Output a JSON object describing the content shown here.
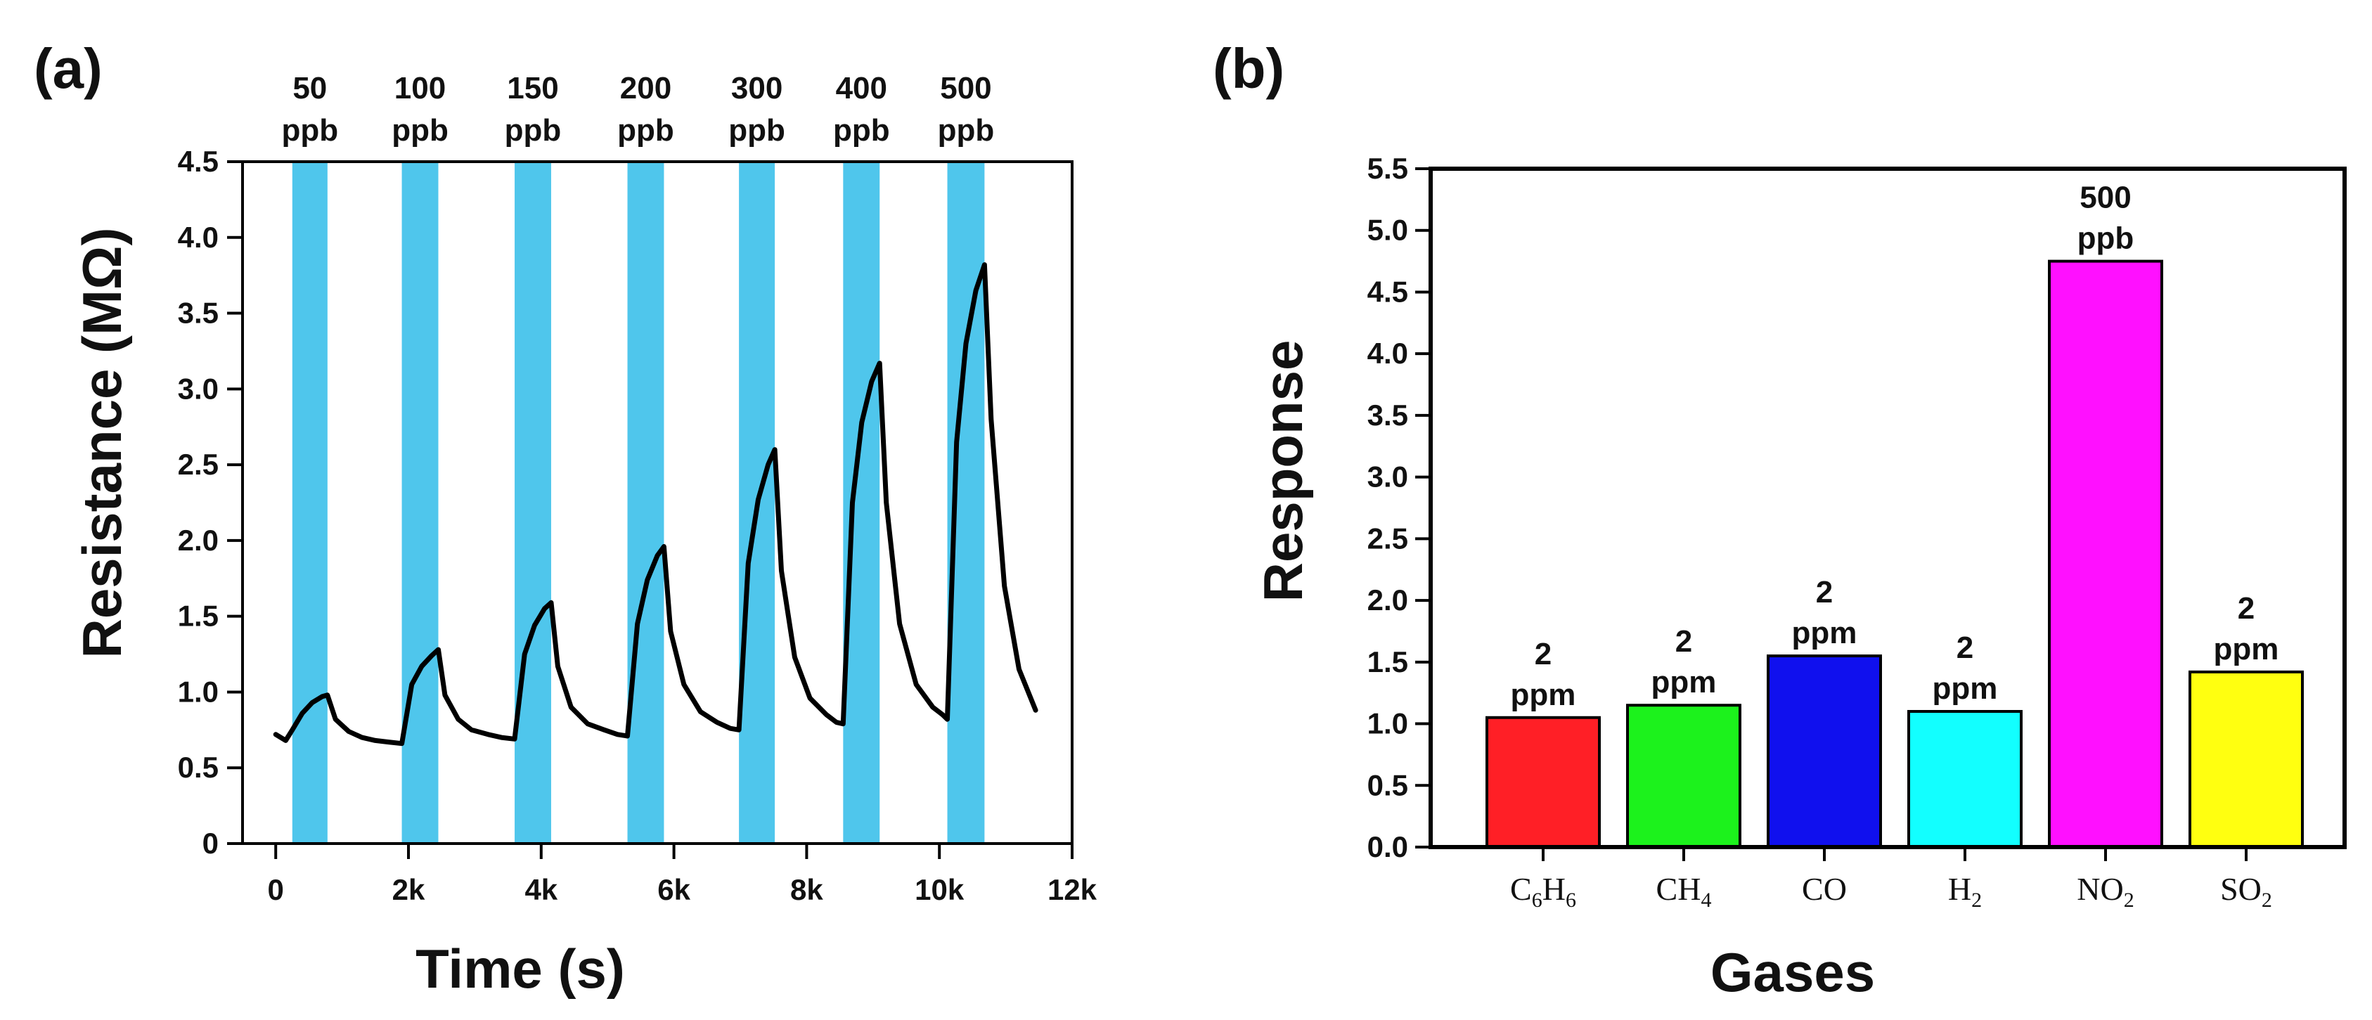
{
  "chart_data": [
    {
      "type": "line",
      "panel_label": "(a)",
      "xlabel": "Time (s)",
      "ylabel": "Resistance (MΩ)",
      "xlim": [
        -500,
        12000
      ],
      "ylim": [
        0,
        4.5
      ],
      "xticks": [
        {
          "value": 0,
          "label": "0"
        },
        {
          "value": 2000,
          "label": "2k"
        },
        {
          "value": 4000,
          "label": "4k"
        },
        {
          "value": 6000,
          "label": "6k"
        },
        {
          "value": 8000,
          "label": "8k"
        },
        {
          "value": 10000,
          "label": "10k"
        },
        {
          "value": 12000,
          "label": "12k"
        }
      ],
      "yticks": [
        {
          "value": 0,
          "label": "0"
        },
        {
          "value": 0.5,
          "label": "0.5"
        },
        {
          "value": 1.0,
          "label": "1.0"
        },
        {
          "value": 1.5,
          "label": "1.5"
        },
        {
          "value": 2.0,
          "label": "2.0"
        },
        {
          "value": 2.5,
          "label": "2.5"
        },
        {
          "value": 3.0,
          "label": "3.0"
        },
        {
          "value": 3.5,
          "label": "3.5"
        },
        {
          "value": 4.0,
          "label": "4.0"
        },
        {
          "value": 4.5,
          "label": "4.5"
        }
      ],
      "exposures": [
        {
          "conc": "50",
          "unit": "ppb",
          "start": 250,
          "end": 780
        },
        {
          "conc": "100",
          "unit": "ppb",
          "start": 1900,
          "end": 2450
        },
        {
          "conc": "150",
          "unit": "ppb",
          "start": 3600,
          "end": 4150
        },
        {
          "conc": "200",
          "unit": "ppb",
          "start": 5300,
          "end": 5850
        },
        {
          "conc": "300",
          "unit": "ppb",
          "start": 6980,
          "end": 7520
        },
        {
          "conc": "400",
          "unit": "ppb",
          "start": 8550,
          "end": 9100
        },
        {
          "conc": "500",
          "unit": "ppb",
          "start": 10120,
          "end": 10680
        }
      ],
      "series": [
        {
          "name": "Resistance",
          "x": [
            0,
            150,
            250,
            400,
            550,
            700,
            780,
            900,
            1100,
            1300,
            1500,
            1700,
            1900,
            2050,
            2200,
            2350,
            2450,
            2550,
            2750,
            2950,
            3200,
            3400,
            3600,
            3750,
            3900,
            4050,
            4150,
            4250,
            4450,
            4700,
            4950,
            5150,
            5300,
            5450,
            5600,
            5750,
            5850,
            5950,
            6150,
            6400,
            6650,
            6850,
            6980,
            7120,
            7270,
            7420,
            7520,
            7620,
            7820,
            8050,
            8300,
            8450,
            8550,
            8690,
            8830,
            8980,
            9100,
            9200,
            9400,
            9650,
            9900,
            10050,
            10120,
            10260,
            10400,
            10550,
            10680,
            10780,
            10980,
            11200,
            11450
          ],
          "y": [
            0.72,
            0.68,
            0.75,
            0.86,
            0.93,
            0.97,
            0.98,
            0.82,
            0.74,
            0.7,
            0.68,
            0.67,
            0.66,
            1.05,
            1.17,
            1.24,
            1.28,
            0.98,
            0.82,
            0.75,
            0.72,
            0.7,
            0.69,
            1.25,
            1.44,
            1.55,
            1.59,
            1.17,
            0.9,
            0.79,
            0.75,
            0.72,
            0.71,
            1.45,
            1.74,
            1.9,
            1.96,
            1.4,
            1.05,
            0.87,
            0.8,
            0.76,
            0.75,
            1.85,
            2.27,
            2.5,
            2.6,
            1.8,
            1.23,
            0.96,
            0.85,
            0.8,
            0.79,
            2.25,
            2.78,
            3.05,
            3.17,
            2.25,
            1.45,
            1.05,
            0.9,
            0.85,
            0.82,
            2.65,
            3.3,
            3.65,
            3.82,
            2.8,
            1.7,
            1.15,
            0.88
          ]
        }
      ]
    },
    {
      "type": "bar",
      "panel_label": "(b)",
      "xlabel": "Gases",
      "ylabel": "Response",
      "ylim": [
        0,
        5.5
      ],
      "yticks": [
        {
          "value": 0.0,
          "label": "0.0"
        },
        {
          "value": 0.5,
          "label": "0.5"
        },
        {
          "value": 1.0,
          "label": "1.0"
        },
        {
          "value": 1.5,
          "label": "1.5"
        },
        {
          "value": 2.0,
          "label": "2.0"
        },
        {
          "value": 2.5,
          "label": "2.5"
        },
        {
          "value": 3.0,
          "label": "3.0"
        },
        {
          "value": 3.5,
          "label": "3.5"
        },
        {
          "value": 4.0,
          "label": "4.0"
        },
        {
          "value": 4.5,
          "label": "4.5"
        },
        {
          "value": 5.0,
          "label": "5.0"
        },
        {
          "value": 5.5,
          "label": "5.5"
        }
      ],
      "bars": [
        {
          "gas": "C",
          "sub": "6",
          "gas2": "H",
          "sub2": "6",
          "value": 1.05,
          "conc": "2",
          "unit": "ppm",
          "color": "#ff1f26"
        },
        {
          "gas": "CH",
          "sub": "4",
          "gas2": "",
          "sub2": "",
          "value": 1.15,
          "conc": "2",
          "unit": "ppm",
          "color": "#1cf21c"
        },
        {
          "gas": "CO",
          "sub": "",
          "gas2": "",
          "sub2": "",
          "value": 1.55,
          "conc": "2",
          "unit": "ppm",
          "color": "#1010ee"
        },
        {
          "gas": "H",
          "sub": "2",
          "gas2": "",
          "sub2": "",
          "value": 1.1,
          "conc": "2",
          "unit": "ppm",
          "color": "#12ffff"
        },
        {
          "gas": "NO",
          "sub": "2",
          "gas2": "",
          "sub2": "",
          "value": 4.75,
          "conc": "500",
          "unit": "ppb",
          "color": "#ff10ff"
        },
        {
          "gas": "SO",
          "sub": "2",
          "gas2": "",
          "sub2": "",
          "value": 1.42,
          "conc": "2",
          "unit": "ppm",
          "color": "#ffff10"
        }
      ]
    }
  ],
  "colors": {
    "exposure_band": "#4fc6ec",
    "line": "#000000"
  }
}
